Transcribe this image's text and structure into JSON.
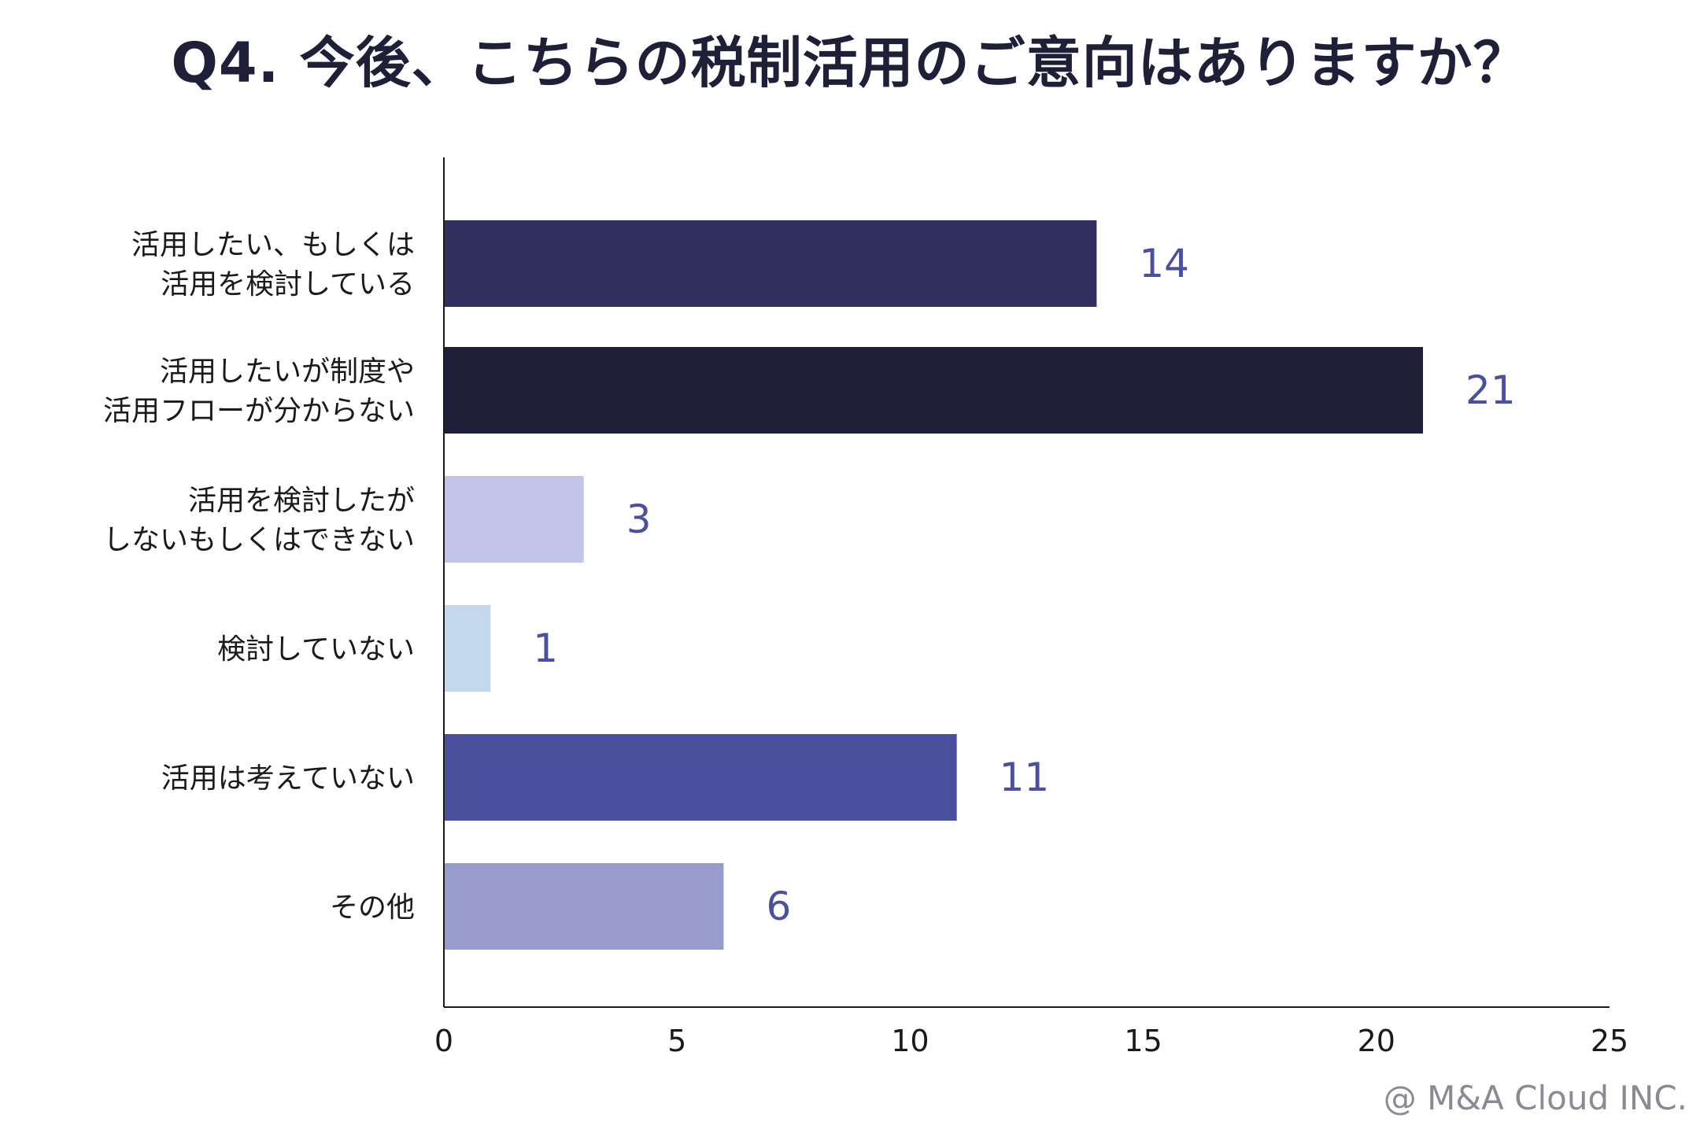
{
  "chart_data": {
    "type": "bar",
    "orientation": "horizontal",
    "title": "Q4. 今後、こちらの税制活用のご意向はありますか？",
    "xlabel": "",
    "ylabel": "",
    "xlim": [
      0,
      25
    ],
    "xticks": [
      0,
      5,
      10,
      15,
      20,
      25
    ],
    "grid": false,
    "legend": "none",
    "categories": [
      [
        "活用したい、もしくは",
        "活用を検討している"
      ],
      [
        "活用したいが制度や",
        "活用フローが分からない"
      ],
      [
        "活用を検討したが",
        "しないもしくはできない"
      ],
      [
        "検討していない"
      ],
      [
        "活用は考えていない"
      ],
      [
        "その他"
      ]
    ],
    "values": [
      14,
      21,
      3,
      1,
      11,
      6
    ],
    "colors": [
      "#31315f",
      "#1f1f3a",
      "#c2c3e8",
      "#c3d8ec",
      "#4a4f9e",
      "#979ccc"
    ],
    "label_color": "#4a4f9e",
    "axis_color": "#1a1a1a",
    "tick_label_color": "#1a1a1a"
  },
  "credit": "@ M&A Cloud INC."
}
